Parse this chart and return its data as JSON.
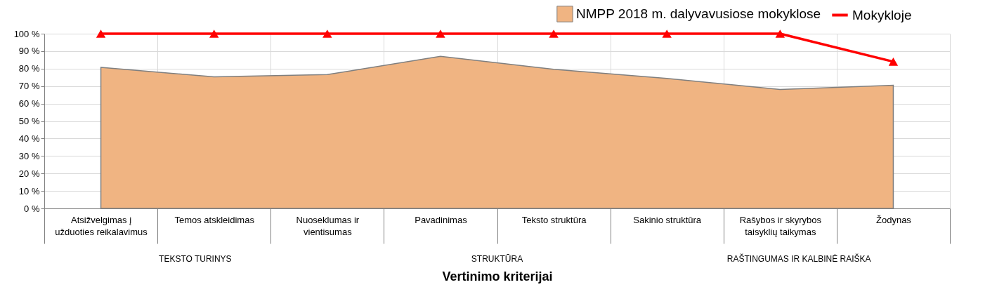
{
  "chart_data": {
    "type": "area",
    "xlabel": "Vertinimo kriterijai",
    "categories": [
      "Atsižvelgimas į užduoties reikalavimus",
      "Temos atskleidimas",
      "Nuoseklumas ir vientisumas",
      "Pavadinimas",
      "Teksto struktūra",
      "Sakinio struktūra",
      "Rašybos ir skyrybos taisyklių taikymas",
      "Žodynas"
    ],
    "series": [
      {
        "name": "NMPP 2018 m. dalyvavusiose mokyklose",
        "color": "#f0b482",
        "values": [
          80.7,
          75.3,
          76.6,
          87,
          79.6,
          74.4,
          68.1,
          70.5
        ]
      },
      {
        "name": "Mokykloje",
        "type": "line",
        "color": "#ff0000",
        "marker": "triangle",
        "values": [
          100,
          100,
          100,
          100,
          100,
          100,
          100,
          84
        ]
      }
    ],
    "ylim": [
      0,
      100
    ],
    "yticks": [
      {
        "value": 0,
        "label": "0 %"
      },
      {
        "value": 10,
        "label": "10 %"
      },
      {
        "value": 20,
        "label": "20 %"
      },
      {
        "value": 30,
        "label": "30 %"
      },
      {
        "value": 40,
        "label": "40 %"
      },
      {
        "value": 50,
        "label": "50 %"
      },
      {
        "value": 60,
        "label": "60 %"
      },
      {
        "value": 70,
        "label": "70 %"
      },
      {
        "value": 80,
        "label": "80 %"
      },
      {
        "value": 90,
        "label": "90 %"
      },
      {
        "value": 100,
        "label": "100 %"
      }
    ],
    "annotations": [
      "TEKSTO TURINYS",
      "STRUKTŪRA",
      "RAŠTINGUMAS IR KALBINĖ RAIŠKA"
    ],
    "grid": true,
    "legend": "top right"
  }
}
